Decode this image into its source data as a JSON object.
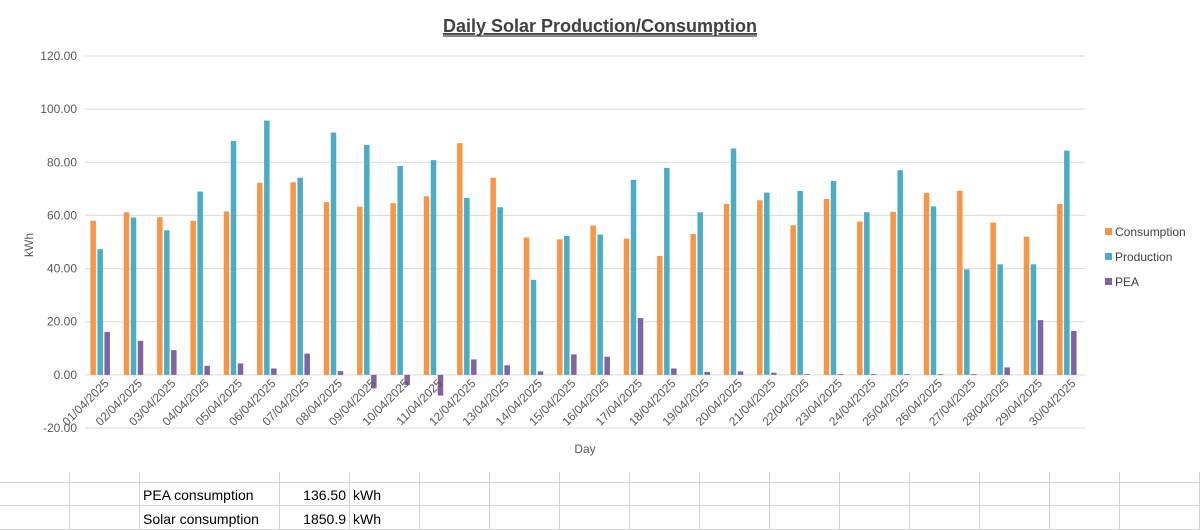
{
  "chart_data": {
    "type": "bar",
    "title": "Daily Solar Production/Consumption",
    "xlabel": "Day",
    "ylabel": "kWh",
    "ylim": [
      -20,
      120
    ],
    "yticks": [
      "-20.00",
      "0.00",
      "20.00",
      "40.00",
      "60.00",
      "80.00",
      "100.00",
      "120.00"
    ],
    "grid": true,
    "legend_position": "right",
    "categories": [
      "01/04/2025",
      "02/04/2025",
      "03/04/2025",
      "04/04/2025",
      "05/04/2025",
      "06/04/2025",
      "07/04/2025",
      "08/04/2025",
      "09/04/2025",
      "10/04/2025",
      "11/04/2025",
      "12/04/2025",
      "13/04/2025",
      "14/04/2025",
      "15/04/2025",
      "16/04/2025",
      "17/04/2025",
      "18/04/2025",
      "19/04/2025",
      "20/04/2025",
      "21/04/2025",
      "22/04/2025",
      "23/04/2025",
      "24/04/2025",
      "25/04/2025",
      "26/04/2025",
      "27/04/2025",
      "28/04/2025",
      "29/04/2025",
      "30/04/2025"
    ],
    "series": [
      {
        "name": "Consumption",
        "color": "#F79646",
        "values": [
          58.0,
          61.2,
          59.3,
          58.0,
          61.5,
          72.3,
          72.5,
          65.0,
          63.3,
          64.6,
          67.2,
          87.2,
          74.2,
          51.7,
          51.0,
          56.2,
          51.3,
          44.8,
          53.0,
          64.3,
          65.7,
          56.3,
          66.2,
          57.7,
          61.3,
          68.5,
          69.3,
          57.3,
          52.0,
          64.3
        ]
      },
      {
        "name": "Production",
        "color": "#4BACC6",
        "values": [
          47.3,
          59.2,
          54.4,
          69.0,
          88.0,
          95.7,
          74.2,
          91.2,
          86.5,
          78.6,
          80.8,
          66.6,
          63.1,
          35.8,
          52.3,
          52.8,
          73.4,
          77.9,
          61.2,
          85.2,
          68.6,
          69.2,
          73.0,
          61.2,
          77.0,
          63.4,
          39.7,
          41.6,
          41.6,
          84.4
        ]
      },
      {
        "name": "PEA",
        "color": "#8064A2",
        "values": [
          16.2,
          12.8,
          9.3,
          3.4,
          4.3,
          2.4,
          8.0,
          1.4,
          -5.1,
          -3.9,
          -7.8,
          5.8,
          3.6,
          1.3,
          7.7,
          6.8,
          21.4,
          2.4,
          1.1,
          1.3,
          0.8,
          0.3,
          0.3,
          0.3,
          0.3,
          0.3,
          0.3,
          2.8,
          20.6,
          16.5
        ]
      }
    ]
  },
  "sheet": {
    "rows": [
      {
        "label": "PEA consumption",
        "value": "136.50",
        "unit": "kWh"
      },
      {
        "label": "Solar consumption",
        "value": "1850.9",
        "unit": "kWh"
      }
    ]
  }
}
